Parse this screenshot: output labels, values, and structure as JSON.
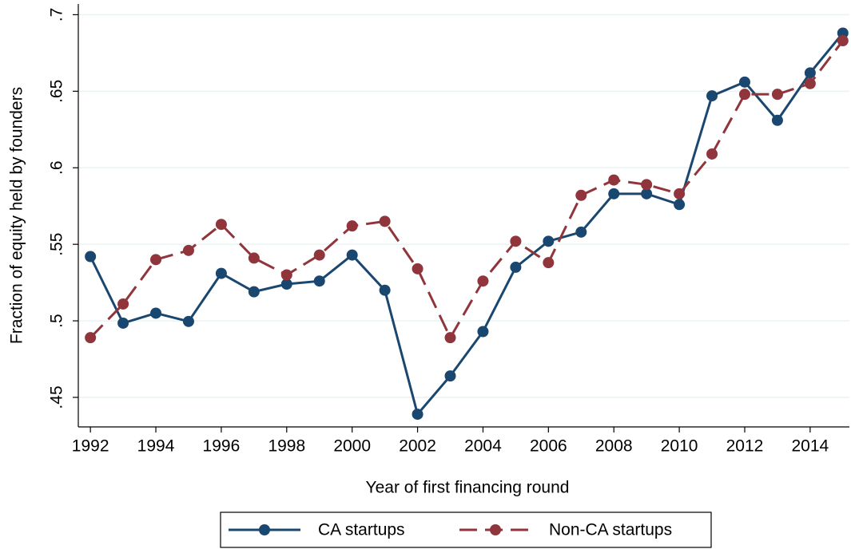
{
  "chart_data": {
    "type": "line",
    "y_label": "Fraction of equity held by founders",
    "x_label": "Year of first financing round",
    "x": [
      1992,
      1993,
      1994,
      1995,
      1996,
      1997,
      1998,
      1999,
      2000,
      2001,
      2002,
      2003,
      2004,
      2005,
      2006,
      2007,
      2008,
      2009,
      2010,
      2011,
      2012,
      2013,
      2014,
      2015
    ],
    "series": [
      {
        "name": "CA startups",
        "color": "#1a476f",
        "style": "solid",
        "values": [
          0.542,
          0.4985,
          0.505,
          0.4996,
          0.531,
          0.519,
          0.524,
          0.526,
          0.543,
          0.52,
          0.439,
          0.464,
          0.493,
          0.535,
          0.552,
          0.558,
          0.583,
          0.583,
          0.576,
          0.647,
          0.656,
          0.631,
          0.662,
          0.688
        ]
      },
      {
        "name": "Non-CA startups",
        "color": "#90353b",
        "style": "dashed",
        "values": [
          0.489,
          0.511,
          0.54,
          0.546,
          0.563,
          0.541,
          0.53,
          0.543,
          0.562,
          0.565,
          0.534,
          0.489,
          0.526,
          0.552,
          0.538,
          0.582,
          0.592,
          0.589,
          0.583,
          0.609,
          0.648,
          0.648,
          0.655,
          0.683
        ]
      }
    ],
    "xlim": [
      1991.63,
      2015.2
    ],
    "ylim": [
      0.4307,
      0.707
    ],
    "xticks": [
      1992,
      1994,
      1996,
      1998,
      2000,
      2002,
      2004,
      2006,
      2008,
      2010,
      2012,
      2014
    ],
    "yticks": [
      {
        "value": 0.45,
        "label": ".45"
      },
      {
        "value": 0.5,
        "label": ".5"
      },
      {
        "value": 0.55,
        "label": ".55"
      },
      {
        "value": 0.6,
        "label": ".6"
      },
      {
        "value": 0.65,
        "label": ".65"
      },
      {
        "value": 0.7,
        "label": ".7"
      }
    ],
    "grid": true,
    "legend": "bottom"
  }
}
